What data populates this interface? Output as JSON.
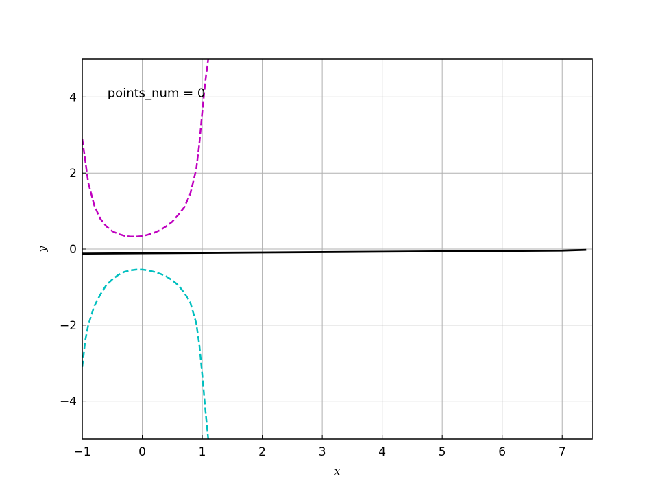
{
  "chart_data": {
    "type": "line",
    "title": "",
    "xlabel": "x",
    "ylabel": "y",
    "xlim": [
      -1,
      7.5
    ],
    "ylim": [
      -5,
      5
    ],
    "xticks": [
      -1,
      0,
      1,
      2,
      3,
      4,
      5,
      6,
      7
    ],
    "yticks": [
      -4,
      -2,
      0,
      2,
      4
    ],
    "xtick_labels": [
      "−1",
      "0",
      "1",
      "2",
      "3",
      "4",
      "5",
      "6",
      "7"
    ],
    "ytick_labels": [
      "−4",
      "−2",
      "0",
      "2",
      "4"
    ],
    "grid": true,
    "annotation": {
      "text": "points_num = 0",
      "x": -0.58,
      "y": 4.0
    },
    "series": [
      {
        "style": "dashed",
        "color": "#bf00bf",
        "x": [
          -1.0,
          -0.9,
          -0.8,
          -0.7,
          -0.6,
          -0.5,
          -0.4,
          -0.3,
          -0.2,
          -0.1,
          0.0,
          0.1,
          0.2,
          0.3,
          0.4,
          0.5,
          0.6,
          0.7,
          0.8,
          0.9,
          0.95,
          1.0,
          1.05,
          1.1
        ],
        "y": [
          2.9,
          1.75,
          1.15,
          0.8,
          0.6,
          0.47,
          0.4,
          0.35,
          0.33,
          0.33,
          0.34,
          0.38,
          0.43,
          0.5,
          0.6,
          0.72,
          0.9,
          1.1,
          1.45,
          2.1,
          2.75,
          3.6,
          4.4,
          5.0
        ]
      },
      {
        "style": "dashed",
        "color": "#00bfbf",
        "x": [
          -1.0,
          -0.95,
          -0.9,
          -0.8,
          -0.7,
          -0.6,
          -0.5,
          -0.4,
          -0.3,
          -0.2,
          -0.1,
          0.0,
          0.1,
          0.2,
          0.3,
          0.4,
          0.5,
          0.6,
          0.7,
          0.8,
          0.9,
          0.95,
          1.0,
          1.05,
          1.1
        ],
        "y": [
          -3.1,
          -2.4,
          -2.0,
          -1.5,
          -1.2,
          -0.95,
          -0.8,
          -0.68,
          -0.6,
          -0.56,
          -0.54,
          -0.54,
          -0.56,
          -0.6,
          -0.65,
          -0.72,
          -0.82,
          -0.95,
          -1.15,
          -1.4,
          -1.95,
          -2.5,
          -3.3,
          -4.2,
          -5.0
        ]
      },
      {
        "style": "solid",
        "color": "#000000",
        "x": [
          -1.0,
          0.0,
          1.0,
          2.0,
          3.0,
          4.0,
          5.0,
          6.0,
          7.0,
          7.4
        ],
        "y": [
          -0.12,
          -0.11,
          -0.1,
          -0.09,
          -0.08,
          -0.07,
          -0.06,
          -0.05,
          -0.04,
          -0.02
        ]
      }
    ]
  }
}
